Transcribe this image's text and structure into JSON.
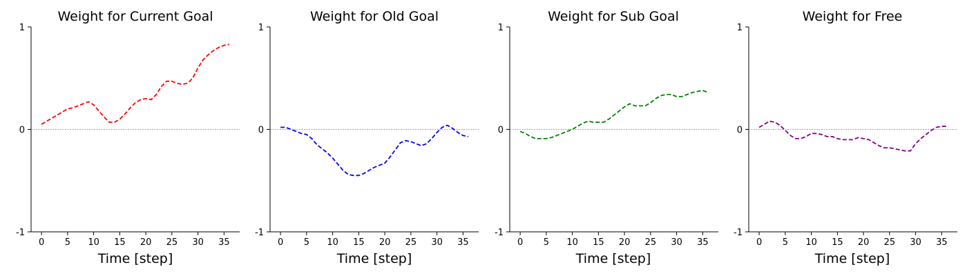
{
  "chart_data": [
    {
      "type": "line",
      "title": "Weight for Current Goal",
      "xlabel": "Time [step]",
      "ylabel": "",
      "xlim": [
        -2,
        38
      ],
      "ylim": [
        -1,
        1
      ],
      "xticks": [
        0,
        5,
        10,
        15,
        20,
        25,
        30,
        35
      ],
      "yticks": [
        -1,
        0,
        1
      ],
      "color": "#ff0000",
      "series": [
        {
          "name": "Weight for Current Goal",
          "x": [
            0,
            1,
            2,
            3,
            4,
            5,
            6,
            7,
            8,
            9,
            10,
            11,
            12,
            13,
            14,
            15,
            16,
            17,
            18,
            19,
            20,
            21,
            22,
            23,
            24,
            25,
            26,
            27,
            28,
            29,
            30,
            31,
            32,
            33,
            34,
            35,
            36
          ],
          "values": [
            0.05,
            0.08,
            0.11,
            0.14,
            0.17,
            0.2,
            0.21,
            0.23,
            0.25,
            0.27,
            0.24,
            0.18,
            0.12,
            0.07,
            0.07,
            0.1,
            0.15,
            0.21,
            0.26,
            0.29,
            0.3,
            0.29,
            0.34,
            0.42,
            0.47,
            0.47,
            0.45,
            0.44,
            0.45,
            0.5,
            0.6,
            0.68,
            0.73,
            0.77,
            0.8,
            0.82,
            0.83
          ]
        }
      ]
    },
    {
      "type": "line",
      "title": "Weight for Old Goal",
      "xlabel": "Time [step]",
      "ylabel": "",
      "xlim": [
        -2,
        38
      ],
      "ylim": [
        -1,
        1
      ],
      "xticks": [
        0,
        5,
        10,
        15,
        20,
        25,
        30,
        35
      ],
      "yticks": [
        -1,
        0,
        1
      ],
      "color": "#0000ff",
      "series": [
        {
          "name": "Weight for Old Goal",
          "x": [
            0,
            1,
            2,
            3,
            4,
            5,
            6,
            7,
            8,
            9,
            10,
            11,
            12,
            13,
            14,
            15,
            16,
            17,
            18,
            19,
            20,
            21,
            22,
            23,
            24,
            25,
            26,
            27,
            28,
            29,
            30,
            31,
            32,
            33,
            34,
            35,
            36
          ],
          "values": [
            0.02,
            0.02,
            0.0,
            -0.02,
            -0.04,
            -0.05,
            -0.09,
            -0.15,
            -0.19,
            -0.23,
            -0.28,
            -0.34,
            -0.4,
            -0.44,
            -0.45,
            -0.45,
            -0.43,
            -0.4,
            -0.37,
            -0.35,
            -0.33,
            -0.27,
            -0.2,
            -0.13,
            -0.11,
            -0.12,
            -0.14,
            -0.16,
            -0.14,
            -0.09,
            -0.03,
            0.02,
            0.04,
            0.01,
            -0.03,
            -0.06,
            -0.07
          ]
        }
      ]
    },
    {
      "type": "line",
      "title": "Weight for Sub Goal",
      "xlabel": "Time [step]",
      "ylabel": "",
      "xlim": [
        -2,
        38
      ],
      "ylim": [
        -1,
        1
      ],
      "xticks": [
        0,
        5,
        10,
        15,
        20,
        25,
        30,
        35
      ],
      "yticks": [
        -1,
        0,
        1
      ],
      "color": "#008000",
      "series": [
        {
          "name": "Weight for Sub Goal",
          "x": [
            0,
            1,
            2,
            3,
            4,
            5,
            6,
            7,
            8,
            9,
            10,
            11,
            12,
            13,
            14,
            15,
            16,
            17,
            18,
            19,
            20,
            21,
            22,
            23,
            24,
            25,
            26,
            27,
            28,
            29,
            30,
            31,
            32,
            33,
            34,
            35,
            36
          ],
          "values": [
            -0.02,
            -0.04,
            -0.07,
            -0.09,
            -0.09,
            -0.09,
            -0.08,
            -0.06,
            -0.04,
            -0.02,
            0.0,
            0.03,
            0.06,
            0.08,
            0.07,
            0.07,
            0.07,
            0.1,
            0.14,
            0.18,
            0.22,
            0.25,
            0.23,
            0.23,
            0.23,
            0.26,
            0.3,
            0.33,
            0.34,
            0.34,
            0.32,
            0.32,
            0.34,
            0.36,
            0.37,
            0.38,
            0.36
          ]
        }
      ]
    },
    {
      "type": "line",
      "title": "Weight for Free",
      "xlabel": "Time [step]",
      "ylabel": "",
      "xlim": [
        -2,
        38
      ],
      "ylim": [
        -1,
        1
      ],
      "xticks": [
        0,
        5,
        10,
        15,
        20,
        25,
        30,
        35
      ],
      "yticks": [
        -1,
        0,
        1
      ],
      "color": "#800080",
      "series": [
        {
          "name": "Weight for Free",
          "x": [
            0,
            1,
            2,
            3,
            4,
            5,
            6,
            7,
            8,
            9,
            10,
            11,
            12,
            13,
            14,
            15,
            16,
            17,
            18,
            19,
            20,
            21,
            22,
            23,
            24,
            25,
            26,
            27,
            28,
            29,
            30,
            31,
            32,
            33,
            34,
            35,
            36
          ],
          "values": [
            0.02,
            0.05,
            0.08,
            0.07,
            0.04,
            -0.01,
            -0.06,
            -0.09,
            -0.09,
            -0.07,
            -0.04,
            -0.04,
            -0.05,
            -0.07,
            -0.07,
            -0.09,
            -0.1,
            -0.1,
            -0.1,
            -0.08,
            -0.09,
            -0.1,
            -0.13,
            -0.16,
            -0.18,
            -0.18,
            -0.19,
            -0.2,
            -0.21,
            -0.21,
            -0.14,
            -0.09,
            -0.05,
            -0.01,
            0.02,
            0.03,
            0.03
          ]
        }
      ]
    }
  ]
}
